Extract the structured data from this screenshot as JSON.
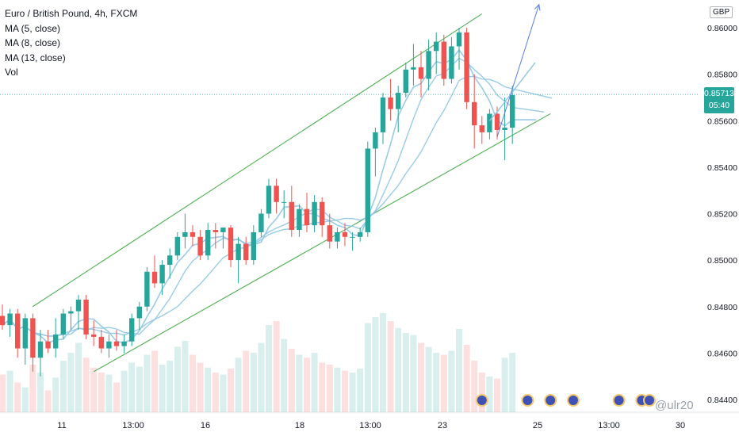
{
  "legend": {
    "symbol": "Euro / British Pound, 4h, FXCM",
    "ma5": "MA (5, close)",
    "ma8": "MA (8, close)",
    "ma13": "MA (13, close)",
    "vol": "Vol"
  },
  "price_tag": {
    "price": "0.85713",
    "countdown": "05:40"
  },
  "currency": "GBP",
  "watermark": "@ulr20",
  "colors": {
    "up": "#26a69a",
    "down": "#ef5350",
    "ma": "#8ec5e6",
    "channel": "#4caf50",
    "arrow": "#2962ff",
    "last_line": "#26a69a"
  },
  "chart_data": {
    "type": "candlestick",
    "y_ticks": [
      "0.86000",
      "0.85800",
      "0.85600",
      "0.85400",
      "0.85200",
      "0.85000",
      "0.84800",
      "0.84600",
      "0.84400"
    ],
    "ylim": [
      0.8437,
      0.8605
    ],
    "x_ticks": [
      "11",
      "13:00",
      "16",
      "18",
      "13:00",
      "23",
      "25",
      "13:00",
      "30"
    ],
    "last_price": 0.85713,
    "candles": [
      [
        0.8476,
        0.8481,
        0.847,
        0.8472
      ],
      [
        0.8472,
        0.8479,
        0.8467,
        0.8477
      ],
      [
        0.8477,
        0.8479,
        0.8458,
        0.8462
      ],
      [
        0.8462,
        0.8477,
        0.8455,
        0.8475
      ],
      [
        0.8475,
        0.8477,
        0.8452,
        0.8458
      ],
      [
        0.8458,
        0.847,
        0.845,
        0.8465
      ],
      [
        0.8465,
        0.847,
        0.846,
        0.8462
      ],
      [
        0.8462,
        0.8475,
        0.8458,
        0.8468
      ],
      [
        0.8468,
        0.8479,
        0.8466,
        0.8477
      ],
      [
        0.8477,
        0.848,
        0.847,
        0.8478
      ],
      [
        0.8478,
        0.8485,
        0.847,
        0.8483
      ],
      [
        0.8483,
        0.8485,
        0.8466,
        0.8468
      ],
      [
        0.8468,
        0.8474,
        0.8463,
        0.8467
      ],
      [
        0.8467,
        0.847,
        0.846,
        0.8462
      ],
      [
        0.8462,
        0.8468,
        0.8458,
        0.8465
      ],
      [
        0.8465,
        0.847,
        0.8461,
        0.8463
      ],
      [
        0.8463,
        0.8468,
        0.846,
        0.8465
      ],
      [
        0.8465,
        0.8477,
        0.8463,
        0.8475
      ],
      [
        0.8475,
        0.8482,
        0.847,
        0.848
      ],
      [
        0.848,
        0.8497,
        0.8478,
        0.8495
      ],
      [
        0.8495,
        0.8502,
        0.8488,
        0.849
      ],
      [
        0.849,
        0.85,
        0.8485,
        0.8498
      ],
      [
        0.8498,
        0.8505,
        0.8492,
        0.8502
      ],
      [
        0.8502,
        0.8512,
        0.85,
        0.851
      ],
      [
        0.851,
        0.852,
        0.8505,
        0.8512
      ],
      [
        0.8512,
        0.8515,
        0.8506,
        0.851
      ],
      [
        0.851,
        0.8513,
        0.85,
        0.8502
      ],
      [
        0.8502,
        0.8516,
        0.85,
        0.8513
      ],
      [
        0.8513,
        0.8516,
        0.8505,
        0.8512
      ],
      [
        0.8512,
        0.8514,
        0.8505,
        0.8514
      ],
      [
        0.8514,
        0.8515,
        0.8497,
        0.85
      ],
      [
        0.85,
        0.851,
        0.849,
        0.8507
      ],
      [
        0.8507,
        0.851,
        0.8498,
        0.85
      ],
      [
        0.85,
        0.8515,
        0.8498,
        0.8512
      ],
      [
        0.8512,
        0.8522,
        0.851,
        0.852
      ],
      [
        0.852,
        0.8535,
        0.8518,
        0.8532
      ],
      [
        0.8532,
        0.8535,
        0.852,
        0.8525
      ],
      [
        0.8525,
        0.853,
        0.8518,
        0.8525
      ],
      [
        0.8525,
        0.8532,
        0.851,
        0.8513
      ],
      [
        0.8513,
        0.8524,
        0.851,
        0.8522
      ],
      [
        0.8522,
        0.8529,
        0.8512,
        0.8515
      ],
      [
        0.8515,
        0.8528,
        0.8512,
        0.8525
      ],
      [
        0.8525,
        0.8527,
        0.851,
        0.8515
      ],
      [
        0.8515,
        0.852,
        0.8505,
        0.8508
      ],
      [
        0.8508,
        0.8514,
        0.8505,
        0.8512
      ],
      [
        0.8512,
        0.8516,
        0.8506,
        0.851
      ],
      [
        0.851,
        0.8512,
        0.8504,
        0.851
      ],
      [
        0.851,
        0.8514,
        0.8508,
        0.8512
      ],
      [
        0.8512,
        0.8551,
        0.851,
        0.8548
      ],
      [
        0.8548,
        0.8557,
        0.8536,
        0.8555
      ],
      [
        0.8555,
        0.8572,
        0.855,
        0.857
      ],
      [
        0.857,
        0.8578,
        0.856,
        0.8565
      ],
      [
        0.8565,
        0.8575,
        0.8555,
        0.8572
      ],
      [
        0.8572,
        0.8585,
        0.857,
        0.8582
      ],
      [
        0.8582,
        0.8593,
        0.8575,
        0.8583
      ],
      [
        0.8583,
        0.859,
        0.857,
        0.8578
      ],
      [
        0.8578,
        0.8595,
        0.8573,
        0.859
      ],
      [
        0.859,
        0.8598,
        0.858,
        0.8594
      ],
      [
        0.8594,
        0.8597,
        0.8575,
        0.8578
      ],
      [
        0.8578,
        0.8596,
        0.8576,
        0.8592
      ],
      [
        0.8592,
        0.86,
        0.8582,
        0.8598
      ],
      [
        0.8598,
        0.86,
        0.8565,
        0.8568
      ],
      [
        0.8568,
        0.858,
        0.8548,
        0.8558
      ],
      [
        0.8558,
        0.8562,
        0.855,
        0.8555
      ],
      [
        0.8555,
        0.8565,
        0.8552,
        0.8563
      ],
      [
        0.8563,
        0.8566,
        0.8552,
        0.8556
      ],
      [
        0.8556,
        0.857,
        0.8543,
        0.8557
      ],
      [
        0.8557,
        0.8575,
        0.855,
        0.8571
      ]
    ],
    "volumes": [
      38,
      42,
      30,
      25,
      48,
      40,
      22,
      35,
      52,
      60,
      70,
      55,
      45,
      40,
      38,
      30,
      42,
      50,
      46,
      58,
      62,
      48,
      52,
      66,
      72,
      58,
      50,
      45,
      40,
      38,
      44,
      55,
      62,
      60,
      70,
      88,
      92,
      74,
      64,
      58,
      55,
      60,
      50,
      48,
      45,
      42,
      40,
      44,
      90,
      96,
      100,
      92,
      85,
      80,
      78,
      70,
      66,
      60,
      58,
      62,
      84,
      68,
      52,
      40,
      36,
      34,
      55,
      60
    ],
    "ma_periods": [
      5,
      8,
      13
    ],
    "channel": {
      "upper": [
        [
          4,
          0.848
        ],
        [
          63,
          0.8606
        ]
      ],
      "lower": [
        [
          12,
          0.8452
        ],
        [
          72,
          0.8563
        ]
      ]
    },
    "projection": {
      "from": [
        64,
        0.856
      ],
      "to": [
        70,
        0.8585
      ]
    },
    "arrow": {
      "from": [
        65,
        0.8553
      ],
      "to": [
        70.5,
        0.861
      ]
    },
    "event_markers": [
      63,
      69,
      72,
      75,
      81,
      84,
      85
    ]
  }
}
